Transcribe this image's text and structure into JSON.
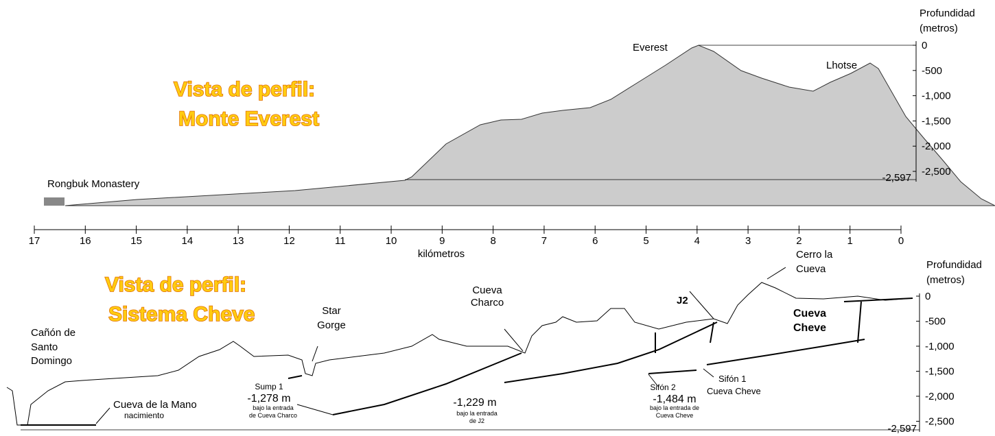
{
  "top": {
    "title": [
      "Vista de perfil:",
      "Monte Everest"
    ],
    "everest": "Everest",
    "lhotse": "Lhotse",
    "rongbuk": "Rongbuk Monastery",
    "axis_title": [
      "Profundidad",
      "(metros)"
    ],
    "depth_ticks": [
      "0",
      "-500",
      "-1,000",
      "-1,500",
      "-2,000",
      "-2,500"
    ],
    "floor_label": "-2,597"
  },
  "distance_axis": {
    "ticks": [
      "17",
      "16",
      "15",
      "14",
      "13",
      "12",
      "11",
      "10",
      "9",
      "8",
      "7",
      "6",
      "5",
      "4",
      "3",
      "2",
      "1",
      "0"
    ],
    "title": "kilómetros"
  },
  "bottom": {
    "title": [
      "Vista de perfil:",
      "Sistema Cheve"
    ],
    "axis_title": [
      "Profundidad",
      "(metros)"
    ],
    "depth_ticks": [
      "0",
      "-500",
      "-1,000",
      "-1,500",
      "-2,000",
      "-2,500"
    ],
    "floor_label": "-2,597",
    "canon": [
      "Cañón de",
      "Santo",
      "Domingo"
    ],
    "star_gorge": [
      "Star",
      "Gorge"
    ],
    "cueva_charco": [
      "Cueva",
      "Charco"
    ],
    "j2": "J2",
    "cerro": [
      "Cerro la",
      "Cueva"
    ],
    "cueva_cheve": [
      "Cueva",
      "Cheve"
    ],
    "mano": "Cueva de la Mano",
    "nacimiento": "nacimiento",
    "sump1": [
      "Sump 1",
      "-1,278 m",
      "bajo la entrada",
      "de Cueva Charco"
    ],
    "j2_depth": [
      "-1,229 m",
      "bajo la entrada",
      "de J2"
    ],
    "sifon2": [
      "Sifón 2",
      "-1,484 m",
      "bajo la entrada de",
      "Cueva Cheve"
    ],
    "sifon1": [
      "Sifón 1",
      "Cueva Cheve"
    ]
  }
}
